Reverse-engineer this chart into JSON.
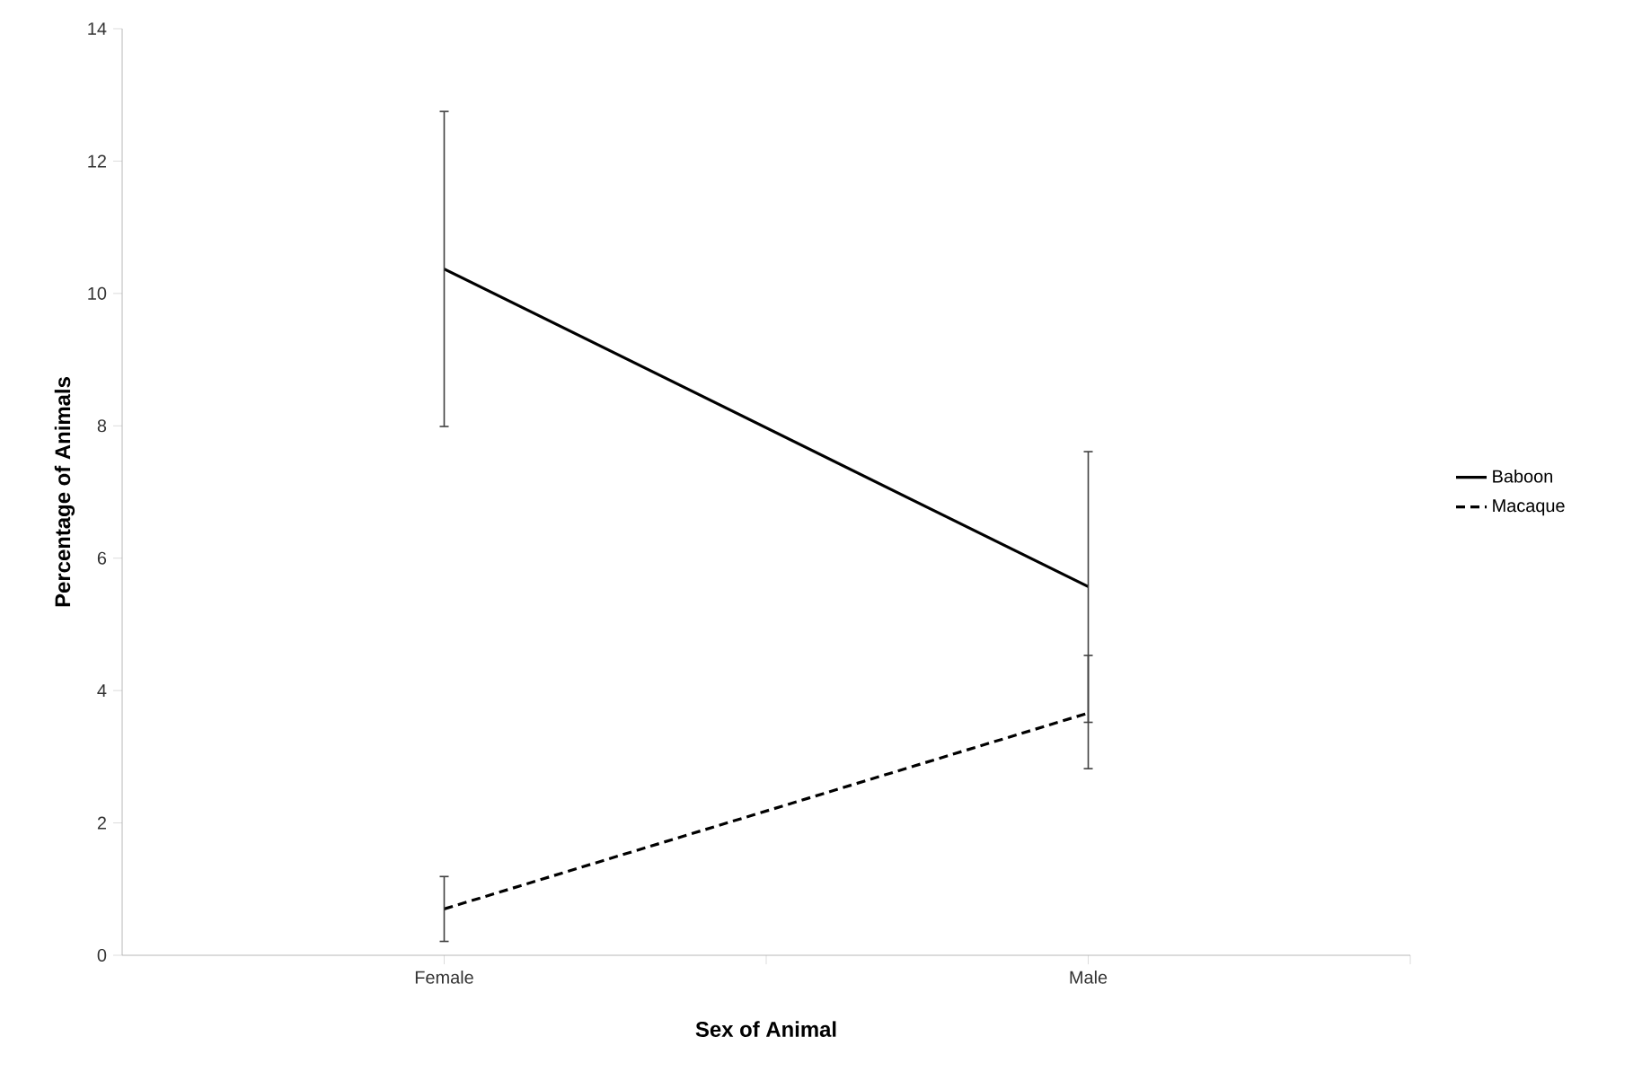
{
  "chart_data": {
    "type": "line",
    "xlabel": "Sex of Animal",
    "ylabel": "Percentage of Animals",
    "categories": [
      "Female",
      "Male"
    ],
    "series": [
      {
        "name": "Baboon",
        "color": "#000000",
        "line_style": "solid",
        "values": [
          10.37,
          5.57
        ],
        "errors": [
          [
            7.99,
            12.75
          ],
          [
            3.52,
            7.61
          ]
        ]
      },
      {
        "name": "Macaque",
        "color": "#000000",
        "line_style": "dashed",
        "values": [
          0.7,
          3.66
        ],
        "errors": [
          [
            0.21,
            1.19
          ],
          [
            2.82,
            4.53
          ]
        ]
      }
    ],
    "ylim": [
      0,
      14
    ],
    "yticks": [
      0,
      2,
      4,
      6,
      8,
      10,
      12,
      14
    ],
    "grid": false,
    "legend": "right",
    "marker": "none"
  }
}
